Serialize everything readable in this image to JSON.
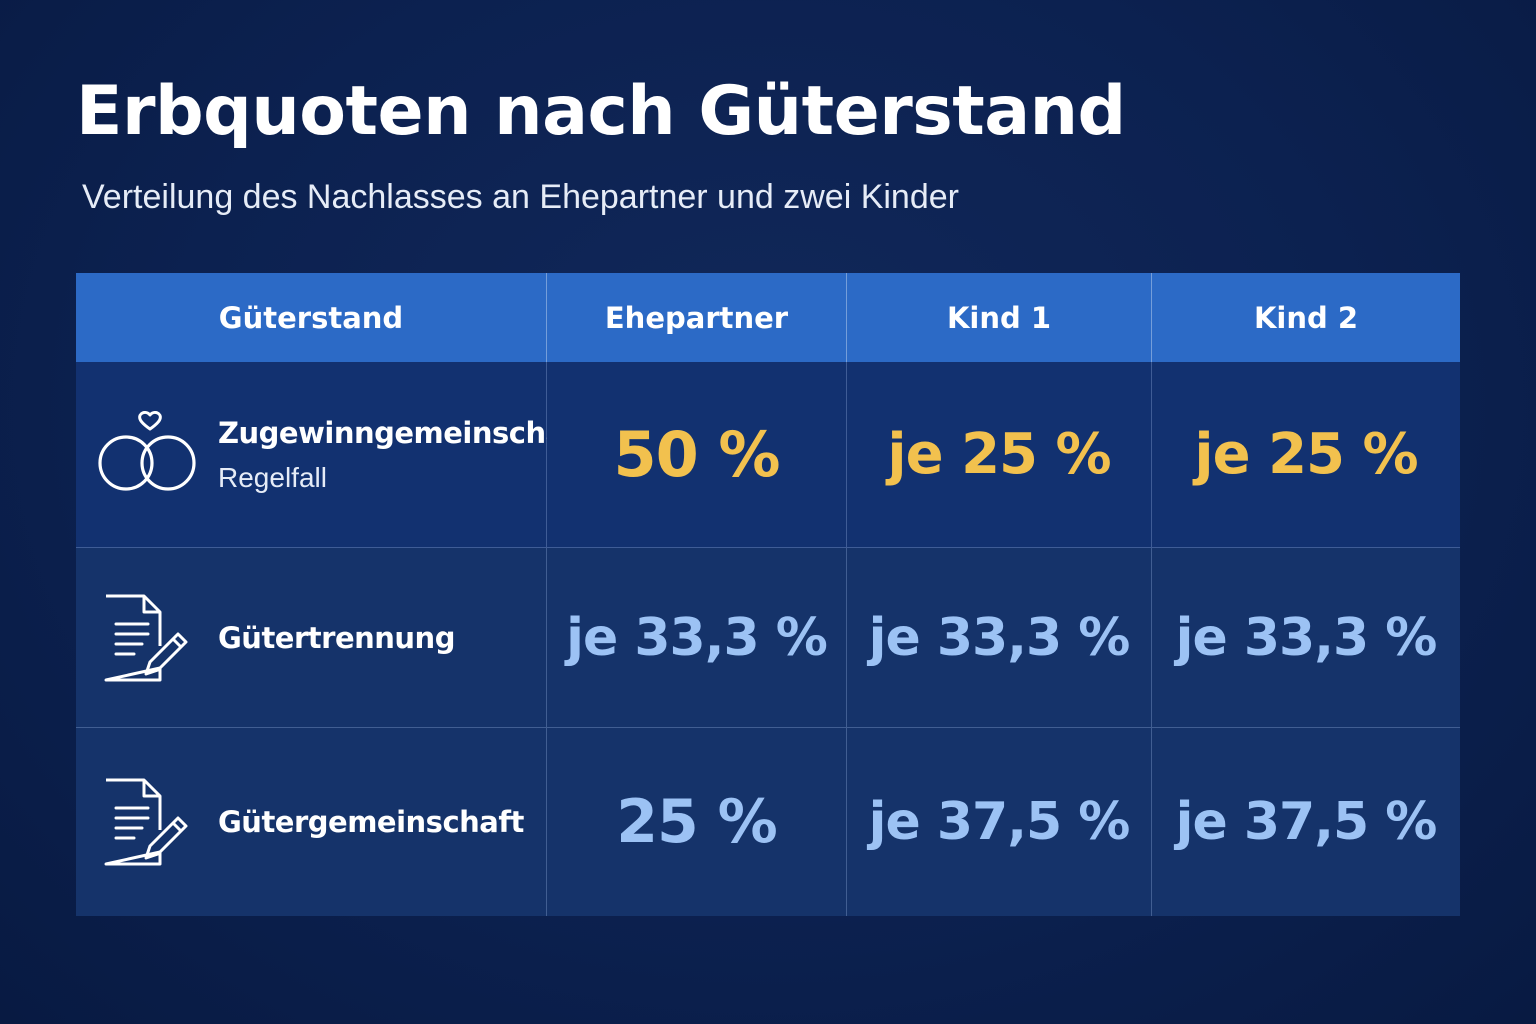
{
  "title": "Erbquoten nach Güterstand",
  "subtitle": "Verteilung des Nachlasses an Ehepartner und zwei Kinder",
  "colors": {
    "background": "#0c2150",
    "header": "#2c6ac6",
    "highlight": "#f2c14e",
    "value": "#9cc2f4"
  },
  "chart_data": {
    "type": "table",
    "columns": [
      "Güterstand",
      "Ehepartner",
      "Kind 1",
      "Kind 2"
    ],
    "rows": [
      {
        "label": "Zugewinngemeinschaft",
        "sublabel": "Regelfall",
        "icon": "wedding-rings-heart-icon",
        "cells": [
          "50 %",
          "je 25 %",
          "je 25 %"
        ],
        "values": [
          50,
          25,
          25
        ],
        "highlight": true
      },
      {
        "label": "Gütertrennung",
        "sublabel": "",
        "icon": "document-pen-icon",
        "cells": [
          "je 33,3 %",
          "je 33,3 %",
          "je 33,3 %"
        ],
        "values": [
          33.3,
          33.3,
          33.3
        ],
        "highlight": false
      },
      {
        "label": "Gütergemeinschaft",
        "sublabel": "",
        "icon": "document-pen-icon",
        "cells": [
          "25 %",
          "je 37,5 %",
          "je 37,5 %"
        ],
        "values": [
          25,
          37.5,
          37.5
        ],
        "highlight": false
      }
    ]
  }
}
